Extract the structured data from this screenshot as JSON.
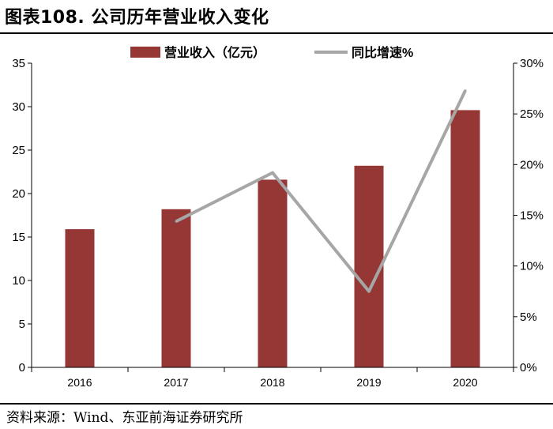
{
  "figure_title": "图表108. 公司历年营业收入变化",
  "source_note": "资料来源：Wind、东亚前海证券研究所",
  "colors": {
    "bar": "#953735",
    "line": "#a6a6a6",
    "axis": "#000000"
  },
  "chart_data": {
    "type": "bar",
    "categories": [
      "2016",
      "2017",
      "2018",
      "2019",
      "2020"
    ],
    "series": [
      {
        "name": "营业收入（亿元）",
        "type": "bar",
        "axis": "left",
        "values": [
          15.9,
          18.2,
          21.6,
          23.2,
          29.6
        ]
      },
      {
        "name": "同比增速%",
        "type": "line",
        "axis": "right",
        "values": [
          null,
          14.4,
          19.2,
          7.5,
          27.3
        ]
      }
    ],
    "left_axis": {
      "ylim": [
        0,
        35
      ],
      "ticks": [
        "0",
        "5",
        "10",
        "15",
        "20",
        "25",
        "30",
        "35"
      ]
    },
    "right_axis": {
      "ylim": [
        0,
        30
      ],
      "ticks": [
        "0%",
        "5%",
        "10%",
        "15%",
        "20%",
        "25%",
        "30%"
      ]
    },
    "legend_position": "top-center",
    "grid": false
  }
}
